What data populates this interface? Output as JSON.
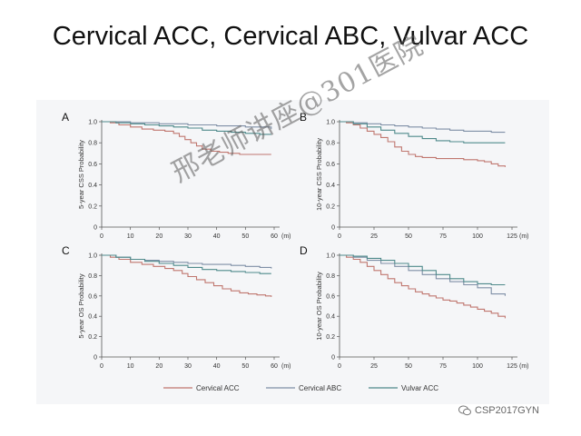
{
  "title": "Cervical ACC, Cervical ABC, Vulvar ACC",
  "watermark": "邢老师讲座@301医院",
  "brand": {
    "text": "CSP2017GYN",
    "icon": "wechat-icon"
  },
  "colors": {
    "cervical_acc": "#c0776f",
    "cervical_abc": "#7f8fa6",
    "vulvar_acc": "#4f8a8b",
    "axis": "#555555",
    "panel": "#f5f6f8"
  },
  "legend": [
    "Cervical ACC",
    "Cervical ABC",
    "Vulvar ACC"
  ],
  "chart_data": [
    {
      "type": "line",
      "letter": "A",
      "ylabel": "5-year CSS Probability",
      "xunit": "(m)",
      "xlim": [
        0,
        60
      ],
      "ylim": [
        0,
        1
      ],
      "xticks": [
        0,
        10,
        20,
        30,
        40,
        50,
        60
      ],
      "yticks": [
        0,
        0.2,
        0.4,
        0.6,
        0.8,
        1.0
      ],
      "series": [
        {
          "name": "Cervical ACC",
          "x": [
            0,
            3,
            6,
            10,
            14,
            18,
            22,
            25,
            27,
            29,
            31,
            33,
            35,
            38,
            41,
            44,
            46,
            48,
            50,
            53,
            56,
            59
          ],
          "y": [
            1.0,
            0.99,
            0.97,
            0.95,
            0.93,
            0.92,
            0.91,
            0.89,
            0.86,
            0.83,
            0.8,
            0.77,
            0.74,
            0.72,
            0.71,
            0.7,
            0.7,
            0.69,
            0.69,
            0.69,
            0.69,
            0.69
          ]
        },
        {
          "name": "Cervical ABC",
          "x": [
            0,
            10,
            20,
            30,
            40,
            50,
            59
          ],
          "y": [
            1.0,
            0.99,
            0.98,
            0.97,
            0.96,
            0.95,
            0.93
          ]
        },
        {
          "name": "Vulvar ACC",
          "x": [
            0,
            5,
            10,
            15,
            20,
            25,
            30,
            35,
            40,
            45,
            50,
            55,
            59
          ],
          "y": [
            1.0,
            0.99,
            0.98,
            0.97,
            0.96,
            0.95,
            0.94,
            0.92,
            0.91,
            0.9,
            0.89,
            0.88,
            0.88
          ]
        }
      ]
    },
    {
      "type": "line",
      "letter": "B",
      "ylabel": "10-year CSS Probability",
      "xunit": "(m)",
      "xlim": [
        0,
        125
      ],
      "ylim": [
        0,
        1
      ],
      "xticks": [
        0,
        25,
        50,
        75,
        100,
        125
      ],
      "yticks": [
        0,
        0.2,
        0.4,
        0.6,
        0.8,
        1.0
      ],
      "series": [
        {
          "name": "Cervical ACC",
          "x": [
            0,
            5,
            10,
            15,
            20,
            25,
            30,
            35,
            40,
            45,
            50,
            55,
            60,
            70,
            80,
            90,
            100,
            105,
            110,
            115,
            120
          ],
          "y": [
            1.0,
            0.99,
            0.97,
            0.94,
            0.91,
            0.88,
            0.85,
            0.81,
            0.76,
            0.72,
            0.69,
            0.67,
            0.66,
            0.65,
            0.65,
            0.64,
            0.63,
            0.62,
            0.6,
            0.58,
            0.57
          ]
        },
        {
          "name": "Cervical ABC",
          "x": [
            0,
            10,
            20,
            30,
            40,
            50,
            60,
            70,
            80,
            90,
            100,
            110,
            120
          ],
          "y": [
            1.0,
            0.99,
            0.98,
            0.97,
            0.96,
            0.95,
            0.94,
            0.93,
            0.92,
            0.91,
            0.91,
            0.9,
            0.9
          ]
        },
        {
          "name": "Vulvar ACC",
          "x": [
            0,
            10,
            20,
            30,
            40,
            50,
            60,
            70,
            80,
            90,
            100,
            110,
            120
          ],
          "y": [
            1.0,
            0.98,
            0.95,
            0.92,
            0.89,
            0.86,
            0.84,
            0.82,
            0.81,
            0.8,
            0.8,
            0.8,
            0.8
          ]
        }
      ]
    },
    {
      "type": "line",
      "letter": "C",
      "ylabel": "5-year OS Probability",
      "xunit": "(m)",
      "xlim": [
        0,
        60
      ],
      "ylim": [
        0,
        1
      ],
      "xticks": [
        0,
        10,
        20,
        30,
        40,
        50,
        60
      ],
      "yticks": [
        0,
        0.2,
        0.4,
        0.6,
        0.8,
        1.0
      ],
      "series": [
        {
          "name": "Cervical ACC",
          "x": [
            0,
            3,
            6,
            10,
            14,
            18,
            22,
            25,
            28,
            30,
            33,
            36,
            39,
            42,
            45,
            48,
            51,
            54,
            57,
            59
          ],
          "y": [
            1.0,
            0.98,
            0.96,
            0.93,
            0.91,
            0.89,
            0.87,
            0.85,
            0.82,
            0.79,
            0.76,
            0.73,
            0.7,
            0.67,
            0.65,
            0.63,
            0.62,
            0.61,
            0.6,
            0.59
          ]
        },
        {
          "name": "Cervical ABC",
          "x": [
            0,
            5,
            10,
            15,
            20,
            25,
            30,
            35,
            40,
            45,
            50,
            55,
            59
          ],
          "y": [
            1.0,
            0.98,
            0.96,
            0.95,
            0.94,
            0.93,
            0.92,
            0.91,
            0.91,
            0.9,
            0.89,
            0.88,
            0.87
          ]
        },
        {
          "name": "Vulvar ACC",
          "x": [
            0,
            5,
            10,
            15,
            20,
            25,
            30,
            35,
            40,
            45,
            50,
            55,
            59
          ],
          "y": [
            1.0,
            0.98,
            0.96,
            0.94,
            0.92,
            0.9,
            0.88,
            0.86,
            0.85,
            0.84,
            0.83,
            0.82,
            0.82
          ]
        }
      ]
    },
    {
      "type": "line",
      "letter": "D",
      "ylabel": "10-year OS Probability",
      "xunit": "(m)",
      "xlim": [
        0,
        125
      ],
      "ylim": [
        0,
        1
      ],
      "xticks": [
        0,
        25,
        50,
        75,
        100,
        125
      ],
      "yticks": [
        0,
        0.2,
        0.4,
        0.6,
        0.8,
        1.0
      ],
      "series": [
        {
          "name": "Cervical ACC",
          "x": [
            0,
            5,
            10,
            15,
            20,
            25,
            30,
            35,
            40,
            45,
            50,
            55,
            60,
            65,
            70,
            75,
            80,
            85,
            90,
            95,
            100,
            105,
            110,
            115,
            120
          ],
          "y": [
            1.0,
            0.98,
            0.96,
            0.93,
            0.89,
            0.85,
            0.81,
            0.77,
            0.73,
            0.7,
            0.67,
            0.64,
            0.62,
            0.6,
            0.58,
            0.56,
            0.55,
            0.53,
            0.51,
            0.49,
            0.47,
            0.45,
            0.43,
            0.4,
            0.38
          ]
        },
        {
          "name": "Cervical ABC",
          "x": [
            0,
            10,
            20,
            30,
            40,
            50,
            60,
            70,
            80,
            90,
            100,
            110,
            120
          ],
          "y": [
            1.0,
            0.98,
            0.95,
            0.92,
            0.89,
            0.85,
            0.81,
            0.77,
            0.74,
            0.71,
            0.68,
            0.62,
            0.6
          ]
        },
        {
          "name": "Vulvar ACC",
          "x": [
            0,
            10,
            20,
            30,
            40,
            50,
            60,
            70,
            80,
            90,
            100,
            110,
            120
          ],
          "y": [
            1.0,
            0.99,
            0.97,
            0.95,
            0.92,
            0.89,
            0.85,
            0.81,
            0.77,
            0.74,
            0.72,
            0.71,
            0.71
          ]
        }
      ]
    }
  ]
}
